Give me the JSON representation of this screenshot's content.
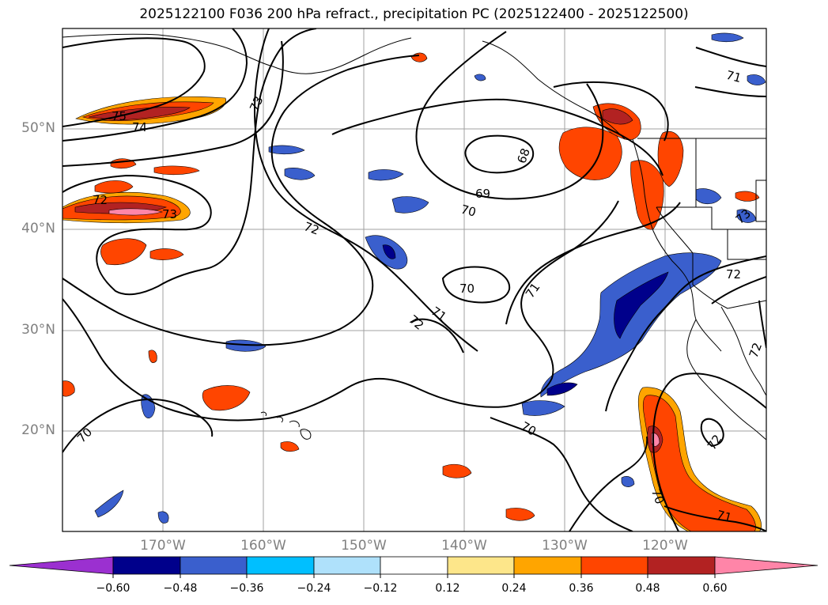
{
  "title": "2025122100 F036 200 hPa refract., precipitation PC (2025122400 - 2025122500)",
  "lat_labels": [
    "50°N",
    "40°N",
    "30°N",
    "20°N"
  ],
  "lon_labels": [
    "170°W",
    "160°W",
    "150°W",
    "140°W",
    "130°W",
    "120°W"
  ],
  "colorbar": {
    "ticks": [
      "−0.60",
      "−0.48",
      "−0.36",
      "−0.24",
      "−0.12",
      "0.12",
      "0.24",
      "0.36",
      "0.48",
      "0.60"
    ],
    "colors": [
      "#9b30d0",
      "#00008b",
      "#3a5fcd",
      "#00bfff",
      "#afe1fb",
      "#ffffff",
      "#fde68a",
      "#ffa500",
      "#ff4500",
      "#b22222",
      "#ff85a8"
    ]
  },
  "contour_labels": [
    "75",
    "74",
    "73",
    "72",
    "73",
    "72",
    "68",
    "69",
    "70",
    "70",
    "71",
    "71",
    "72",
    "71",
    "72",
    "70",
    "70",
    "72",
    "71",
    "70",
    "73",
    "72"
  ]
}
